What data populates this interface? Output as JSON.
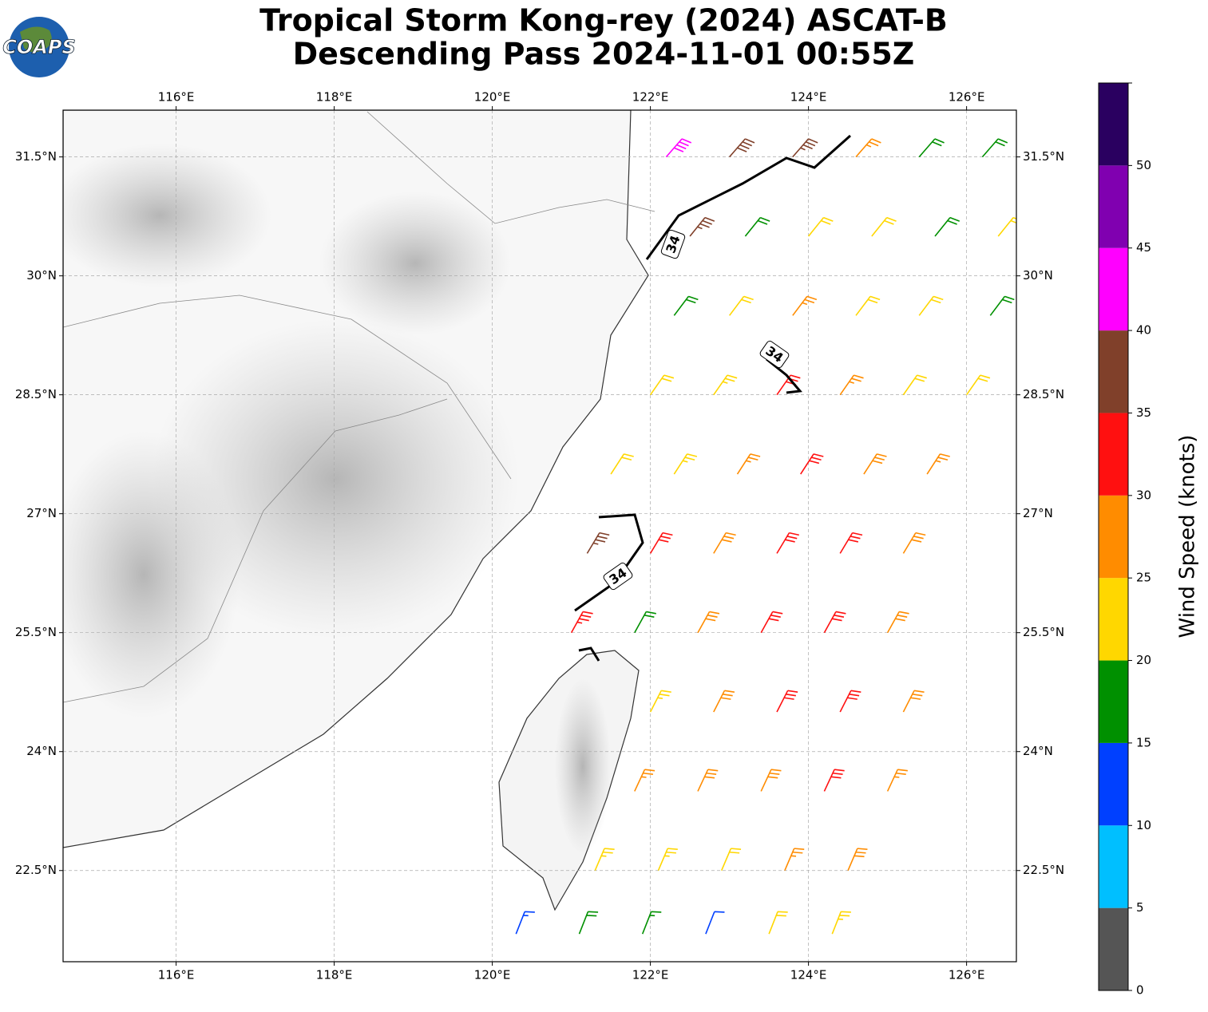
{
  "chart_data": {
    "type": "barb-map",
    "title": "Tropical Storm Kong-rey (2024) ASCAT-B",
    "subtitle": "Descending Pass 2024-11-01 00:55Z",
    "logo": "COAPS",
    "xlim": [
      114.57,
      126.63
    ],
    "ylim": [
      21.35,
      32.09
    ],
    "xticks": [
      {
        "value": 116,
        "label": "116°E"
      },
      {
        "value": 118,
        "label": "118°E"
      },
      {
        "value": 120,
        "label": "120°E"
      },
      {
        "value": 122,
        "label": "122°E"
      },
      {
        "value": 124,
        "label": "124°E"
      },
      {
        "value": 126,
        "label": "126°E"
      }
    ],
    "yticks": [
      {
        "value": 22.5,
        "label": "22.5°N"
      },
      {
        "value": 24,
        "label": "24°N"
      },
      {
        "value": 25.5,
        "label": "25.5°N"
      },
      {
        "value": 27,
        "label": "27°N"
      },
      {
        "value": 28.5,
        "label": "28.5°N"
      },
      {
        "value": 30,
        "label": "30°N"
      },
      {
        "value": 31.5,
        "label": "31.5°N"
      }
    ],
    "grid": true,
    "contour_labels": [
      "34",
      "34",
      "34"
    ],
    "colorbar": {
      "label": "Wind Speed (knots)",
      "bounds": [
        0,
        5,
        10,
        15,
        20,
        25,
        30,
        35,
        40,
        45,
        50,
        55
      ],
      "colors": [
        "#555555",
        "#00bfff",
        "#0040ff",
        "#009000",
        "#ffd700",
        "#ff8c00",
        "#ff1010",
        "#80402a",
        "#ff00ff",
        "#8000b0",
        "#2a0060"
      ],
      "ticks": [
        0,
        5,
        10,
        15,
        20,
        25,
        30,
        35,
        40,
        45,
        50
      ]
    },
    "barbs": {
      "lon": [
        122.2,
        123,
        123.8,
        124.6,
        125.4,
        126.2,
        122.5,
        123.2,
        124,
        124.8,
        125.6,
        126.4,
        122.3,
        123,
        123.8,
        124.6,
        125.4,
        126.3,
        122,
        122.8,
        123.6,
        124.4,
        125.2,
        126,
        121.5,
        122.3,
        123.1,
        123.9,
        124.7,
        125.5,
        121.2,
        122,
        122.8,
        123.6,
        124.4,
        125.2,
        121,
        121.8,
        122.6,
        123.4,
        124.2,
        125,
        122,
        122.8,
        123.6,
        124.4,
        125.2,
        121.8,
        122.6,
        123.4,
        124.2,
        125,
        121.3,
        122.1,
        122.9,
        123.7,
        124.5,
        120.3,
        121.1,
        121.9,
        122.7,
        123.5,
        124.3
      ],
      "lat": [
        31.5,
        31.5,
        31.5,
        31.5,
        31.5,
        31.5,
        30.5,
        30.5,
        30.5,
        30.5,
        30.5,
        30.5,
        29.5,
        29.5,
        29.5,
        29.5,
        29.5,
        29.5,
        28.5,
        28.5,
        28.5,
        28.5,
        28.5,
        28.5,
        27.5,
        27.5,
        27.5,
        27.5,
        27.5,
        27.5,
        26.5,
        26.5,
        26.5,
        26.5,
        26.5,
        26.5,
        25.5,
        25.5,
        25.5,
        25.5,
        25.5,
        25.5,
        24.5,
        24.5,
        24.5,
        24.5,
        24.5,
        23.5,
        23.5,
        23.5,
        23.5,
        23.5,
        22.5,
        22.5,
        22.5,
        22.5,
        22.5,
        21.7,
        21.7,
        21.7,
        21.7,
        21.7,
        21.7
      ],
      "speed": [
        42,
        38,
        37,
        25,
        18,
        18,
        35,
        18,
        22,
        22,
        18,
        20,
        18,
        22,
        25,
        22,
        20,
        18,
        22,
        24,
        30,
        25,
        20,
        22,
        22,
        24,
        27,
        32,
        28,
        26,
        37,
        32,
        29,
        31,
        32,
        28,
        33,
        18,
        28,
        30,
        32,
        29,
        23,
        28,
        30,
        31,
        28,
        27,
        28,
        29,
        30,
        27,
        23,
        23,
        22,
        26,
        28,
        14,
        18,
        17,
        12,
        22,
        24
      ]
    }
  }
}
